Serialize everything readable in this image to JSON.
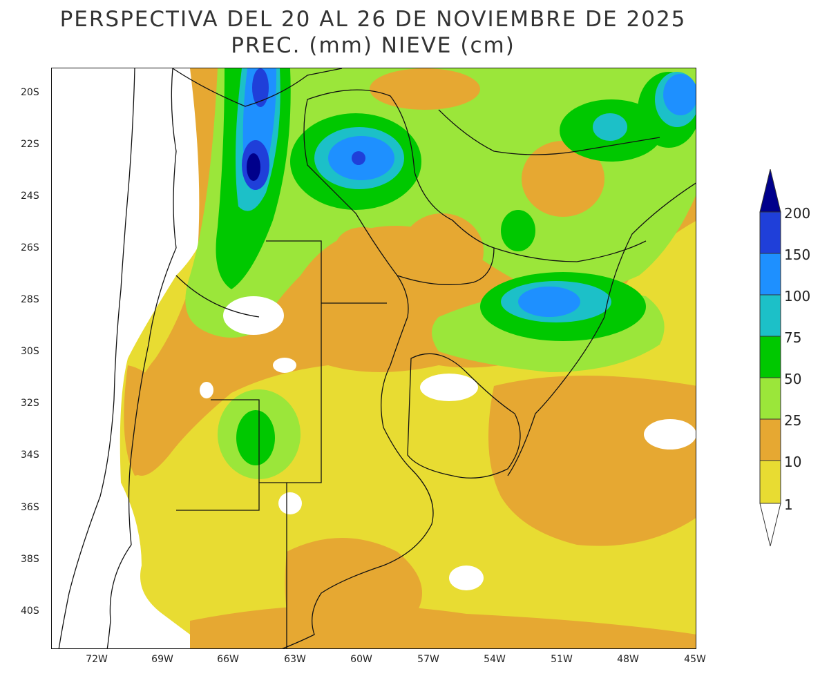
{
  "title": {
    "line1": "PERSPECTIVA DEL 20 AL 26 DE NOVIEMBRE DE 2025",
    "line2": "PREC. (mm) NIEVE (cm)"
  },
  "map": {
    "lat_labels": [
      "20S",
      "22S",
      "24S",
      "26S",
      "28S",
      "30S",
      "32S",
      "34S",
      "36S",
      "38S",
      "40S"
    ],
    "lon_labels": [
      "72W",
      "69W",
      "66W",
      "63W",
      "60W",
      "57W",
      "54W",
      "51W",
      "48W",
      "45W"
    ]
  },
  "legend": {
    "levels": [
      "200",
      "150",
      "100",
      "75",
      "50",
      "25",
      "10",
      "1"
    ],
    "colors": {
      "c200_plus": "#00008b",
      "c150_200": "#1f3fd9",
      "c100_150": "#1e90ff",
      "c75_100": "#1cc0c8",
      "c50_75": "#00c800",
      "c25_50": "#9be63a",
      "c10_25": "#e6a832",
      "c1_10": "#e8dc32",
      "c_lt1": "#ffffff"
    }
  }
}
